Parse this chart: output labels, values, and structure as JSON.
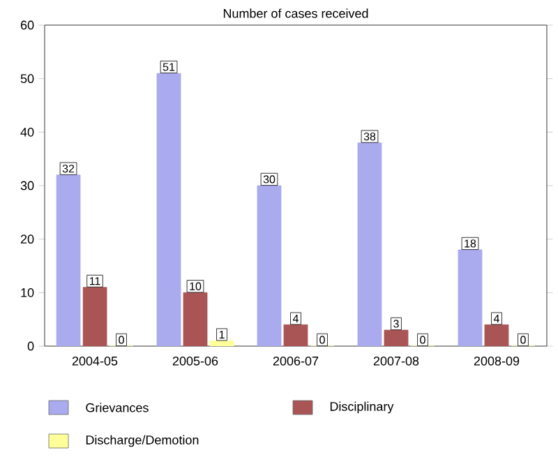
{
  "chart_data": {
    "type": "bar",
    "title": "Number of cases received",
    "categories": [
      "2004-05",
      "2005-06",
      "2006-07",
      "2007-08",
      "2008-09"
    ],
    "series": [
      {
        "name": "Grievances",
        "color": "#aaaaee",
        "values": [
          32,
          51,
          30,
          38,
          18
        ]
      },
      {
        "name": "Disciplinary",
        "color": "#aa5555",
        "values": [
          11,
          10,
          4,
          3,
          4
        ]
      },
      {
        "name": "Discharge/Demotion",
        "color": "#ffff99",
        "values": [
          0,
          1,
          0,
          0,
          0
        ]
      }
    ],
    "ylim": [
      0,
      60
    ],
    "yticks": [
      0,
      10,
      20,
      30,
      40,
      50,
      60
    ],
    "data_labels": true,
    "legend": "bottom",
    "grid": false
  }
}
